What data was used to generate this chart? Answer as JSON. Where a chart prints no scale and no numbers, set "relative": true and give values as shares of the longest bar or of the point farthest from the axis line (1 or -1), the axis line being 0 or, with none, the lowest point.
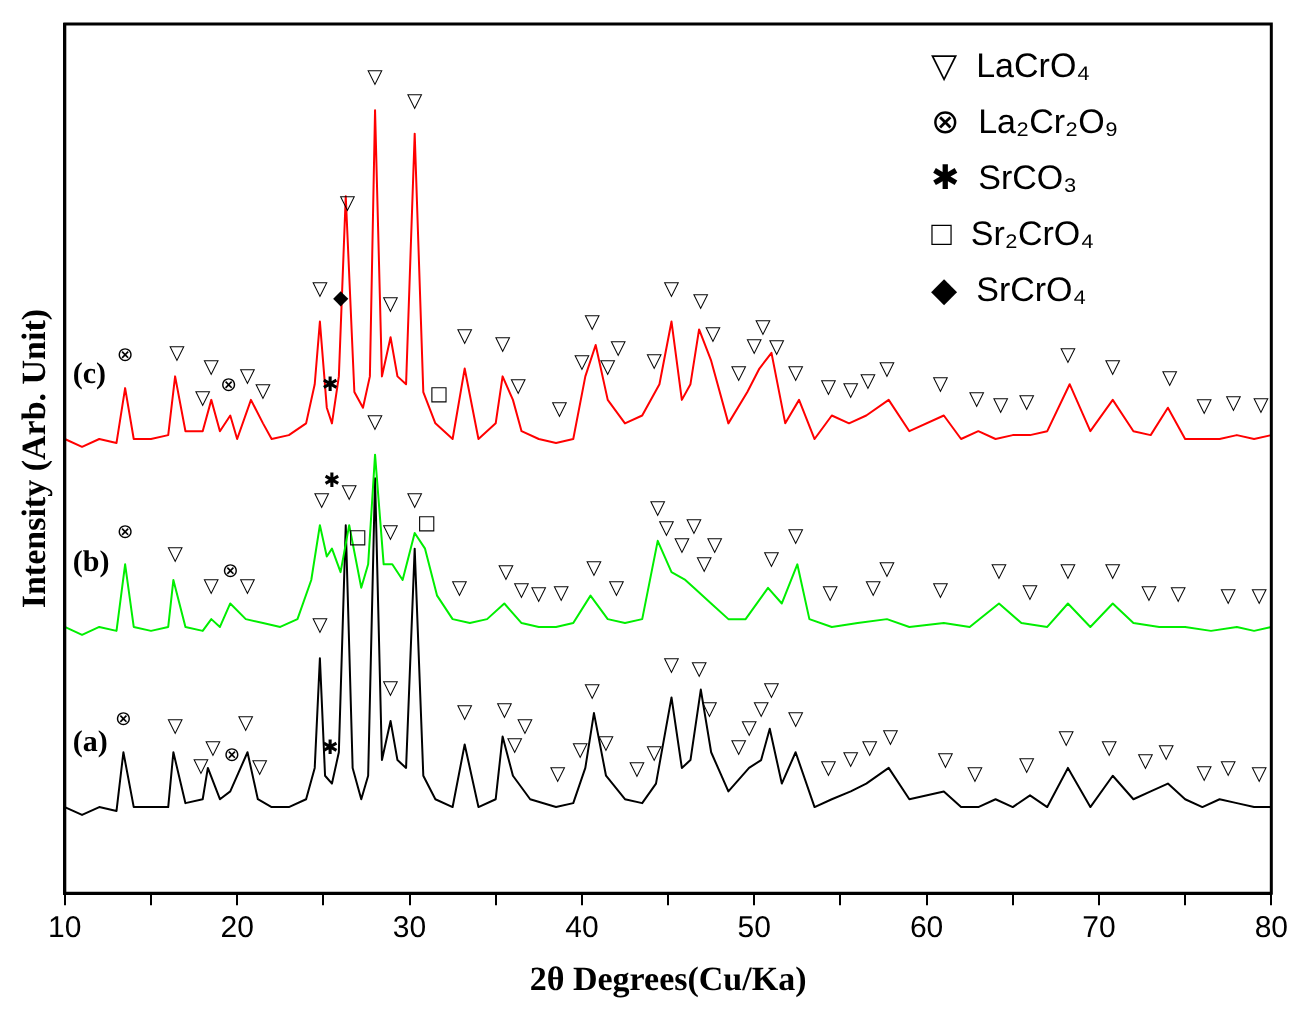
{
  "chart_data": {
    "type": "line",
    "relative": true,
    "xlabel": "2θ Degrees(Cu/Ka)",
    "ylabel": "Intensity (Arb. Unit)",
    "xlim": [
      10,
      80
    ],
    "xticks": [
      10,
      {
        "value": 15,
        "label": null
      },
      20,
      {
        "value": 25,
        "label": null
      },
      30,
      {
        "value": 35,
        "label": null
      },
      40,
      {
        "value": 45,
        "label": null
      },
      50,
      {
        "value": 55,
        "label": null
      },
      60,
      {
        "value": 65,
        "label": null
      },
      70,
      {
        "value": 75,
        "label": null
      },
      80
    ],
    "grid": false,
    "legend": false,
    "marker": "none",
    "line_style": "solid",
    "tick_labels": "x",
    "series": [
      {
        "name": "(c)",
        "color": "#ff0000",
        "x": [
          10,
          11,
          12,
          13,
          13.5,
          14,
          15,
          16,
          16.4,
          17,
          18,
          18.5,
          19,
          19.6,
          20,
          20.8,
          21.5,
          22,
          23,
          24,
          24.5,
          24.8,
          25.2,
          25.5,
          25.9,
          26.3,
          26.8,
          27.3,
          27.7,
          28.0,
          28.4,
          28.9,
          29.3,
          29.8,
          30.3,
          30.8,
          31.5,
          32.5,
          33.2,
          34,
          35,
          35.4,
          36,
          36.5,
          37.5,
          38.5,
          39.5,
          40.2,
          40.8,
          41.5,
          42.5,
          43.5,
          44.5,
          45.2,
          45.8,
          46.3,
          46.8,
          47.5,
          48.5,
          49.6,
          50.3,
          51.0,
          51.8,
          52.6,
          53.5,
          54.5,
          55.5,
          56.5,
          57.8,
          59,
          61,
          62,
          63,
          64,
          65,
          66,
          67,
          68.3,
          69.5,
          70.8,
          72,
          73,
          74,
          75,
          76,
          77,
          78,
          79,
          80
        ],
        "values": [
          0.58,
          0.57,
          0.58,
          0.575,
          0.645,
          0.58,
          0.58,
          0.585,
          0.66,
          0.59,
          0.59,
          0.63,
          0.59,
          0.61,
          0.58,
          0.63,
          0.6,
          0.58,
          0.585,
          0.6,
          0.65,
          0.73,
          0.62,
          0.6,
          0.66,
          0.89,
          0.64,
          0.62,
          0.66,
          1.0,
          0.66,
          0.71,
          0.66,
          0.65,
          0.97,
          0.64,
          0.6,
          0.58,
          0.67,
          0.58,
          0.6,
          0.66,
          0.63,
          0.59,
          0.58,
          0.575,
          0.58,
          0.66,
          0.7,
          0.63,
          0.6,
          0.61,
          0.65,
          0.73,
          0.63,
          0.65,
          0.72,
          0.68,
          0.6,
          0.64,
          0.67,
          0.69,
          0.6,
          0.63,
          0.58,
          0.61,
          0.6,
          0.61,
          0.63,
          0.59,
          0.61,
          0.58,
          0.59,
          0.58,
          0.585,
          0.585,
          0.59,
          0.65,
          0.59,
          0.63,
          0.59,
          0.585,
          0.62,
          0.58,
          0.58,
          0.58,
          0.585,
          0.58,
          0.585
        ]
      },
      {
        "name": "(b)",
        "color": "#00ee00",
        "x": [
          10,
          11,
          12,
          13,
          13.5,
          14,
          15,
          16,
          16.3,
          17,
          18,
          18.5,
          19,
          19.6,
          20.5,
          21.5,
          22.5,
          23.5,
          24.3,
          24.8,
          25.2,
          25.5,
          26.0,
          26.5,
          27.2,
          27.6,
          28.0,
          28.5,
          29.0,
          29.6,
          30.3,
          30.9,
          31.6,
          32.5,
          33.5,
          34.5,
          35.5,
          36.5,
          37.5,
          38.5,
          39.5,
          40.5,
          41.5,
          42.5,
          43.5,
          44.4,
          45.2,
          46.0,
          46.5,
          47.5,
          48.5,
          49.5,
          50.8,
          51.6,
          52.5,
          53.2,
          54.5,
          56,
          57.7,
          59,
          61,
          62.5,
          64.2,
          65.5,
          67,
          68.2,
          69.5,
          70.8,
          72,
          73.5,
          75,
          76.5,
          78,
          79,
          80
        ],
        "values": [
          0.34,
          0.33,
          0.34,
          0.335,
          0.42,
          0.34,
          0.335,
          0.34,
          0.4,
          0.34,
          0.335,
          0.35,
          0.34,
          0.37,
          0.35,
          0.345,
          0.34,
          0.35,
          0.4,
          0.47,
          0.43,
          0.44,
          0.41,
          0.47,
          0.39,
          0.42,
          0.56,
          0.42,
          0.42,
          0.4,
          0.46,
          0.44,
          0.38,
          0.35,
          0.345,
          0.35,
          0.37,
          0.345,
          0.34,
          0.34,
          0.345,
          0.38,
          0.35,
          0.345,
          0.35,
          0.45,
          0.41,
          0.4,
          0.39,
          0.37,
          0.35,
          0.35,
          0.39,
          0.37,
          0.42,
          0.35,
          0.34,
          0.345,
          0.35,
          0.34,
          0.345,
          0.34,
          0.37,
          0.345,
          0.34,
          0.37,
          0.34,
          0.37,
          0.345,
          0.34,
          0.34,
          0.335,
          0.34,
          0.335,
          0.34
        ]
      },
      {
        "name": "(a)",
        "color": "#000000",
        "x": [
          10,
          11,
          12,
          13,
          13.4,
          14,
          15,
          16,
          16.3,
          17,
          18,
          18.3,
          19,
          19.6,
          20.6,
          21.2,
          22,
          23,
          24,
          24.5,
          24.8,
          25.1,
          25.5,
          25.9,
          26.3,
          26.7,
          27.2,
          27.6,
          28.0,
          28.4,
          28.9,
          29.3,
          29.8,
          30.3,
          30.8,
          31.5,
          32.5,
          33.2,
          34,
          35,
          35.4,
          36,
          37,
          38.5,
          39.5,
          40.2,
          40.7,
          41.4,
          42.5,
          43.5,
          44.3,
          45.2,
          45.8,
          46.3,
          46.9,
          47.5,
          48.5,
          49.7,
          50.4,
          50.9,
          51.6,
          52.4,
          53.5,
          54.5,
          55.6,
          56.5,
          57.8,
          59,
          61,
          62,
          63,
          64,
          65,
          66,
          67,
          68.2,
          69.5,
          70.8,
          72,
          73,
          74,
          75,
          76,
          77,
          78,
          79,
          80
        ],
        "values": [
          0.11,
          0.1,
          0.11,
          0.105,
          0.18,
          0.11,
          0.11,
          0.11,
          0.18,
          0.115,
          0.12,
          0.16,
          0.12,
          0.13,
          0.18,
          0.12,
          0.11,
          0.11,
          0.12,
          0.16,
          0.3,
          0.15,
          0.14,
          0.18,
          0.47,
          0.16,
          0.12,
          0.15,
          0.53,
          0.17,
          0.22,
          0.17,
          0.16,
          0.44,
          0.15,
          0.12,
          0.11,
          0.19,
          0.11,
          0.12,
          0.2,
          0.15,
          0.12,
          0.11,
          0.115,
          0.16,
          0.23,
          0.15,
          0.12,
          0.115,
          0.14,
          0.25,
          0.16,
          0.17,
          0.26,
          0.18,
          0.13,
          0.16,
          0.17,
          0.21,
          0.14,
          0.18,
          0.11,
          0.12,
          0.13,
          0.14,
          0.16,
          0.12,
          0.13,
          0.11,
          0.11,
          0.12,
          0.11,
          0.125,
          0.11,
          0.16,
          0.11,
          0.15,
          0.12,
          0.13,
          0.14,
          0.12,
          0.11,
          0.12,
          0.115,
          0.11,
          0.11
        ]
      }
    ],
    "annotations": [
      "▽  LaCrO₄",
      "⊗  La₂Cr₂O₉",
      "✱  SrCO₃",
      "□  Sr₂CrO₄",
      "◆  SrCrO₄",
      {
        "text": "⊗",
        "x": 13.5,
        "y": 0.645
      },
      {
        "text": "▽",
        "x": 16.5,
        "y": 0.648
      },
      {
        "text": "▽",
        "x": 18.0,
        "y": 0.59
      },
      {
        "text": "▽",
        "x": 18.5,
        "y": 0.63
      },
      {
        "text": "⊗",
        "x": 19.5,
        "y": 0.607
      },
      {
        "text": "▽",
        "x": 20.6,
        "y": 0.618
      },
      {
        "text": "▽",
        "x": 21.5,
        "y": 0.6
      },
      {
        "text": "▽",
        "x": 24.8,
        "y": 0.73
      },
      {
        "text": "◆",
        "x": 26.0,
        "y": 0.718
      },
      {
        "text": "✱",
        "x": 25.4,
        "y": 0.607
      },
      {
        "text": "▽",
        "x": 26.4,
        "y": 0.84
      },
      {
        "text": "▽",
        "x": 28.0,
        "y": 1.0
      },
      {
        "text": "▽",
        "x": 30.3,
        "y": 0.97
      },
      {
        "text": "▽",
        "x": 28.9,
        "y": 0.71
      },
      {
        "text": "□",
        "x": 31.7,
        "y": 0.596
      },
      {
        "text": "▽",
        "x": 33.2,
        "y": 0.67
      },
      {
        "text": "▽",
        "x": 35.4,
        "y": 0.66
      },
      {
        "text": "▽",
        "x": 36.3,
        "y": 0.606
      },
      {
        "text": "▽",
        "x": 38.7,
        "y": 0.576
      },
      {
        "text": "▽",
        "x": 40.0,
        "y": 0.637
      },
      {
        "text": "▽",
        "x": 40.6,
        "y": 0.687
      },
      {
        "text": "▽",
        "x": 41.5,
        "y": 0.63
      },
      {
        "text": "▽",
        "x": 42.1,
        "y": 0.612
      },
      {
        "text": "▽",
        "x": 44.2,
        "y": 0.638
      },
      {
        "text": "▽",
        "x": 45.2,
        "y": 0.73
      },
      {
        "text": "▽",
        "x": 46.9,
        "y": 0.714
      },
      {
        "text": "▽",
        "x": 47.6,
        "y": 0.672
      },
      {
        "text": "▽",
        "x": 49.1,
        "y": 0.622
      },
      {
        "text": "▽",
        "x": 50.0,
        "y": 0.657
      },
      {
        "text": "▽",
        "x": 50.5,
        "y": 0.676
      },
      {
        "text": "▽",
        "x": 51.3,
        "y": 0.656
      },
      {
        "text": "▽",
        "x": 52.4,
        "y": 0.623
      },
      {
        "text": "▽",
        "x": 54.3,
        "y": 0.604
      },
      {
        "text": "▽",
        "x": 55.6,
        "y": 0.601
      },
      {
        "text": "▽",
        "x": 56.6,
        "y": 0.612
      },
      {
        "text": "▽",
        "x": 57.7,
        "y": 0.628
      },
      {
        "text": "▽",
        "x": 60.8,
        "y": 0.608
      },
      {
        "text": "▽",
        "x": 62.9,
        "y": 0.589
      },
      {
        "text": "▽",
        "x": 64.3,
        "y": 0.582
      },
      {
        "text": "▽",
        "x": 65.8,
        "y": 0.585
      },
      {
        "text": "▽",
        "x": 68.2,
        "y": 0.645
      },
      {
        "text": "▽",
        "x": 70.8,
        "y": 0.63
      },
      {
        "text": "▽",
        "x": 74.1,
        "y": 0.616
      },
      {
        "text": "▽",
        "x": 76.1,
        "y": 0.58
      },
      {
        "text": "▽",
        "x": 77.8,
        "y": 0.584
      },
      {
        "text": "▽",
        "x": 79.4,
        "y": 0.582
      },
      {
        "text": "⊗",
        "x": 13.5,
        "y": 0.42
      },
      {
        "text": "▽",
        "x": 16.4,
        "y": 0.391
      },
      {
        "text": "▽",
        "x": 18.5,
        "y": 0.35
      },
      {
        "text": "⊗",
        "x": 19.6,
        "y": 0.37
      },
      {
        "text": "▽",
        "x": 20.6,
        "y": 0.35
      },
      {
        "text": "▽",
        "x": 24.9,
        "y": 0.46
      },
      {
        "text": "✱",
        "x": 25.5,
        "y": 0.44
      },
      {
        "text": "▽",
        "x": 26.5,
        "y": 0.47
      },
      {
        "text": "□",
        "x": 27.0,
        "y": 0.413
      },
      {
        "text": "▽",
        "x": 28.0,
        "y": 0.56
      },
      {
        "text": "▽",
        "x": 28.9,
        "y": 0.42
      },
      {
        "text": "▽",
        "x": 30.3,
        "y": 0.46
      },
      {
        "text": "□",
        "x": 31.0,
        "y": 0.431
      },
      {
        "text": "▽",
        "x": 32.9,
        "y": 0.348
      },
      {
        "text": "▽",
        "x": 35.6,
        "y": 0.368
      },
      {
        "text": "▽",
        "x": 36.5,
        "y": 0.345
      },
      {
        "text": "▽",
        "x": 37.5,
        "y": 0.34
      },
      {
        "text": "▽",
        "x": 38.8,
        "y": 0.342
      },
      {
        "text": "▽",
        "x": 40.7,
        "y": 0.374
      },
      {
        "text": "▽",
        "x": 42.0,
        "y": 0.348
      },
      {
        "text": "▽",
        "x": 44.4,
        "y": 0.45
      },
      {
        "text": "▽",
        "x": 44.9,
        "y": 0.425
      },
      {
        "text": "▽",
        "x": 45.8,
        "y": 0.403
      },
      {
        "text": "▽",
        "x": 46.5,
        "y": 0.39
      },
      {
        "text": "▽",
        "x": 47.1,
        "y": 0.378
      },
      {
        "text": "▽",
        "x": 47.7,
        "y": 0.366
      },
      {
        "text": "▽",
        "x": 51.0,
        "y": 0.385
      },
      {
        "text": "▽",
        "x": 52.4,
        "y": 0.414
      },
      {
        "text": "▽",
        "x": 54.4,
        "y": 0.341
      },
      {
        "text": "▽",
        "x": 56.9,
        "y": 0.348
      },
      {
        "text": "▽",
        "x": 57.7,
        "y": 0.35
      },
      {
        "text": "▽",
        "x": 60.8,
        "y": 0.345
      },
      {
        "text": "▽",
        "x": 64.2,
        "y": 0.37
      },
      {
        "text": "▽",
        "x": 66.0,
        "y": 0.343
      },
      {
        "text": "▽",
        "x": 68.2,
        "y": 0.37
      },
      {
        "text": "▽",
        "x": 70.8,
        "y": 0.37
      },
      {
        "text": "▽",
        "x": 72.9,
        "y": 0.342
      },
      {
        "text": "▽",
        "x": 74.6,
        "y": 0.34
      },
      {
        "text": "▽",
        "x": 77.5,
        "y": 0.338
      },
      {
        "text": "▽",
        "x": 79.3,
        "y": 0.337
      },
      {
        "text": "⊗",
        "x": 13.4,
        "y": 0.18
      },
      {
        "text": "▽",
        "x": 16.4,
        "y": 0.171
      },
      {
        "text": "▽",
        "x": 17.9,
        "y": 0.12
      },
      {
        "text": "▽",
        "x": 18.6,
        "y": 0.143
      },
      {
        "text": "⊗",
        "x": 19.7,
        "y": 0.135
      },
      {
        "text": "▽",
        "x": 20.5,
        "y": 0.175
      },
      {
        "text": "▽",
        "x": 21.3,
        "y": 0.119
      },
      {
        "text": "▽",
        "x": 24.8,
        "y": 0.3
      },
      {
        "text": "✱",
        "x": 25.4,
        "y": 0.143
      },
      {
        "text": "▽",
        "x": 28.9,
        "y": 0.22
      },
      {
        "text": "▽",
        "x": 33.2,
        "y": 0.19
      },
      {
        "text": "▽",
        "x": 35.5,
        "y": 0.192
      },
      {
        "text": "▽",
        "x": 36.1,
        "y": 0.147
      },
      {
        "text": "▽",
        "x": 36.7,
        "y": 0.129
      },
      {
        "text": "▽",
        "x": 38.6,
        "y": 0.11
      },
      {
        "text": "▽",
        "x": 39.9,
        "y": 0.141
      },
      {
        "text": "▽",
        "x": 40.6,
        "y": 0.216
      },
      {
        "text": "▽",
        "x": 41.4,
        "y": 0.15
      },
      {
        "text": "▽",
        "x": 43.2,
        "y": 0.117
      },
      {
        "text": "▽",
        "x": 44.2,
        "y": 0.137
      },
      {
        "text": "▽",
        "x": 45.2,
        "y": 0.25
      },
      {
        "text": "▽",
        "x": 46.8,
        "y": 0.245
      },
      {
        "text": "▽",
        "x": 47.4,
        "y": 0.193
      },
      {
        "text": "▽",
        "x": 49.1,
        "y": 0.145
      },
      {
        "text": "▽",
        "x": 49.7,
        "y": 0.16
      },
      {
        "text": "▽",
        "x": 50.4,
        "y": 0.17
      },
      {
        "text": "▽",
        "x": 51.0,
        "y": 0.2
      },
      {
        "text": "▽",
        "x": 52.4,
        "y": 0.18
      },
      {
        "text": "▽",
        "x": 54.3,
        "y": 0.118
      },
      {
        "text": "▽",
        "x": 55.6,
        "y": 0.13
      },
      {
        "text": "▽",
        "x": 56.7,
        "y": 0.143
      },
      {
        "text": "▽",
        "x": 57.9,
        "y": 0.157
      },
      {
        "text": "▽",
        "x": 61.1,
        "y": 0.128
      },
      {
        "text": "▽",
        "x": 62.8,
        "y": 0.11
      },
      {
        "text": "▽",
        "x": 65.8,
        "y": 0.122
      },
      {
        "text": "▽",
        "x": 68.1,
        "y": 0.156
      },
      {
        "text": "▽",
        "x": 70.6,
        "y": 0.144
      },
      {
        "text": "▽",
        "x": 72.7,
        "y": 0.127
      },
      {
        "text": "▽",
        "x": 73.9,
        "y": 0.139
      },
      {
        "text": "▽",
        "x": 76.1,
        "y": 0.111
      },
      {
        "text": "▽",
        "x": 77.5,
        "y": 0.118
      },
      {
        "text": "▽",
        "x": 79.3,
        "y": 0.11
      }
    ]
  }
}
